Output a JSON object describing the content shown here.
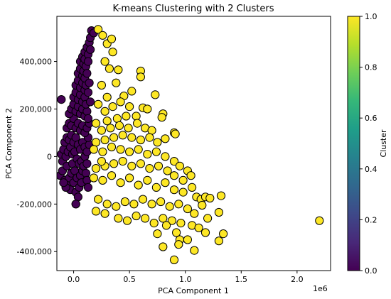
{
  "chart_data": {
    "type": "scatter",
    "title": "K-means Clustering with 2 Clusters",
    "xlabel": "PCA Component 1",
    "ylabel": "PCA Component 2",
    "x_offset_text": "1e6",
    "x_scale": 1000000,
    "xlim": [
      -0.15,
      2.3
    ],
    "ylim": [
      -480000,
      590000
    ],
    "x_ticks": [
      0.0,
      0.5,
      1.0,
      1.5,
      2.0
    ],
    "x_tick_labels": [
      "0.0",
      "0.5",
      "1.0",
      "1.5",
      "2.0"
    ],
    "y_ticks": [
      -400000,
      -200000,
      0,
      200000,
      400000
    ],
    "y_tick_labels": [
      "-400,000",
      "-200,000",
      "0",
      "200,000",
      "400,000"
    ],
    "grid": false,
    "legend": "none",
    "marker_edge_color": "#000000",
    "colorbar": {
      "label": "Cluster",
      "colormap": "viridis",
      "range": [
        0.0,
        1.0
      ],
      "ticks": [
        0.0,
        0.2,
        0.4,
        0.6,
        0.8,
        1.0
      ],
      "tick_labels": [
        "0.0",
        "0.2",
        "0.4",
        "0.6",
        "0.8",
        "1.0"
      ],
      "stops": [
        "#440154",
        "#482878",
        "#3e4989",
        "#31688e",
        "#26828e",
        "#1f9e89",
        "#35b779",
        "#6ece58",
        "#b5de2b",
        "#fde725"
      ]
    },
    "series": [
      {
        "cluster": 0,
        "color": "#440154",
        "points": [
          [
            -0.12,
            -80000
          ],
          [
            -0.1,
            -60000
          ],
          [
            -0.08,
            -100000
          ],
          [
            -0.1,
            -20000
          ],
          [
            -0.06,
            -40000
          ],
          [
            -0.05,
            -120000
          ],
          [
            -0.03,
            -140000
          ],
          [
            -0.04,
            -90000
          ],
          [
            -0.02,
            -70000
          ],
          [
            0.0,
            -110000
          ],
          [
            0.02,
            -150000
          ],
          [
            -0.01,
            -30000
          ],
          [
            0.01,
            -60000
          ],
          [
            0.03,
            -90000
          ],
          [
            0.05,
            -130000
          ],
          [
            0.04,
            -170000
          ],
          [
            0.06,
            -80000
          ],
          [
            0.02,
            -200000
          ],
          [
            0.07,
            -110000
          ],
          [
            0.08,
            -60000
          ],
          [
            -0.11,
            10000
          ],
          [
            -0.09,
            30000
          ],
          [
            -0.07,
            0
          ],
          [
            -0.05,
            20000
          ],
          [
            -0.03,
            40000
          ],
          [
            -0.01,
            10000
          ],
          [
            0.01,
            20000
          ],
          [
            0.03,
            -10000
          ],
          [
            0.05,
            -30000
          ],
          [
            0.07,
            -20000
          ],
          [
            0.09,
            -40000
          ],
          [
            0.1,
            0
          ],
          [
            0.11,
            -70000
          ],
          [
            0.12,
            -100000
          ],
          [
            0.13,
            -130000
          ],
          [
            0.12,
            -30000
          ],
          [
            -0.08,
            60000
          ],
          [
            -0.06,
            80000
          ],
          [
            -0.04,
            70000
          ],
          [
            -0.02,
            90000
          ],
          [
            0.0,
            60000
          ],
          [
            0.02,
            80000
          ],
          [
            0.04,
            50000
          ],
          [
            0.06,
            30000
          ],
          [
            0.08,
            60000
          ],
          [
            0.1,
            40000
          ],
          [
            0.12,
            20000
          ],
          [
            0.14,
            50000
          ],
          [
            0.13,
            80000
          ],
          [
            -0.06,
            120000
          ],
          [
            -0.04,
            140000
          ],
          [
            -0.02,
            130000
          ],
          [
            0.0,
            160000
          ],
          [
            0.02,
            120000
          ],
          [
            0.04,
            140000
          ],
          [
            0.06,
            110000
          ],
          [
            0.08,
            130000
          ],
          [
            0.1,
            100000
          ],
          [
            0.12,
            120000
          ],
          [
            0.14,
            140000
          ],
          [
            -0.11,
            240000
          ],
          [
            -0.04,
            180000
          ],
          [
            -0.02,
            200000
          ],
          [
            0.0,
            220000
          ],
          [
            0.02,
            190000
          ],
          [
            0.04,
            210000
          ],
          [
            0.06,
            180000
          ],
          [
            0.08,
            200000
          ],
          [
            0.1,
            170000
          ],
          [
            0.12,
            190000
          ],
          [
            0.13,
            160000
          ],
          [
            0.0,
            250000
          ],
          [
            0.02,
            270000
          ],
          [
            0.04,
            240000
          ],
          [
            0.06,
            260000
          ],
          [
            0.08,
            230000
          ],
          [
            0.1,
            250000
          ],
          [
            0.11,
            220000
          ],
          [
            0.02,
            300000
          ],
          [
            0.04,
            320000
          ],
          [
            0.06,
            290000
          ],
          [
            0.08,
            310000
          ],
          [
            0.1,
            280000
          ],
          [
            0.11,
            300000
          ],
          [
            0.04,
            350000
          ],
          [
            0.06,
            370000
          ],
          [
            0.08,
            340000
          ],
          [
            0.09,
            360000
          ],
          [
            0.1,
            330000
          ],
          [
            0.06,
            400000
          ],
          [
            0.08,
            420000
          ],
          [
            0.09,
            390000
          ],
          [
            0.1,
            410000
          ],
          [
            0.11,
            380000
          ],
          [
            0.1,
            440000
          ],
          [
            0.12,
            460000
          ],
          [
            0.13,
            430000
          ],
          [
            0.14,
            480000
          ],
          [
            0.15,
            500000
          ],
          [
            0.16,
            530000
          ],
          [
            0.18,
            520000
          ],
          [
            0.15,
            450000
          ],
          [
            0.13,
            400000
          ],
          [
            0.12,
            350000
          ],
          [
            0.14,
            310000
          ],
          [
            0.13,
            270000
          ],
          [
            0.15,
            230000
          ],
          [
            0.02,
            -200000
          ],
          [
            -0.07,
            -130000
          ],
          [
            -0.09,
            -110000
          ]
        ]
      },
      {
        "cluster": 1,
        "color": "#fde725",
        "points": [
          [
            2.2,
            -270000
          ],
          [
            0.22,
            535000
          ],
          [
            0.26,
            510000
          ],
          [
            0.3,
            475000
          ],
          [
            0.34,
            495000
          ],
          [
            0.35,
            440000
          ],
          [
            0.28,
            400000
          ],
          [
            0.32,
            370000
          ],
          [
            0.4,
            365000
          ],
          [
            0.6,
            360000
          ],
          [
            0.6,
            335000
          ],
          [
            0.73,
            260000
          ],
          [
            0.52,
            275000
          ],
          [
            0.45,
            255000
          ],
          [
            0.38,
            310000
          ],
          [
            0.25,
            300000
          ],
          [
            0.3,
            250000
          ],
          [
            0.22,
            220000
          ],
          [
            0.28,
            190000
          ],
          [
            0.35,
            210000
          ],
          [
            0.42,
            230000
          ],
          [
            0.5,
            210000
          ],
          [
            0.62,
            205000
          ],
          [
            0.66,
            200000
          ],
          [
            0.56,
            170000
          ],
          [
            0.47,
            170000
          ],
          [
            0.39,
            160000
          ],
          [
            0.3,
            150000
          ],
          [
            0.2,
            140000
          ],
          [
            0.25,
            110000
          ],
          [
            0.33,
            120000
          ],
          [
            0.41,
            130000
          ],
          [
            0.49,
            120000
          ],
          [
            0.57,
            140000
          ],
          [
            0.64,
            120000
          ],
          [
            0.7,
            110000
          ],
          [
            0.8,
            180000
          ],
          [
            0.79,
            165000
          ],
          [
            0.9,
            100000
          ],
          [
            0.91,
            95000
          ],
          [
            0.82,
            75000
          ],
          [
            0.75,
            60000
          ],
          [
            0.68,
            80000
          ],
          [
            0.6,
            70000
          ],
          [
            0.52,
            80000
          ],
          [
            0.44,
            90000
          ],
          [
            0.36,
            80000
          ],
          [
            0.28,
            70000
          ],
          [
            0.2,
            60000
          ],
          [
            0.18,
            30000
          ],
          [
            0.26,
            20000
          ],
          [
            0.34,
            40000
          ],
          [
            0.42,
            30000
          ],
          [
            0.5,
            20000
          ],
          [
            0.58,
            30000
          ],
          [
            0.66,
            10000
          ],
          [
            0.74,
            20000
          ],
          [
            0.82,
            0
          ],
          [
            0.9,
            -20000
          ],
          [
            0.95,
            -40000
          ],
          [
            1.02,
            -60000
          ],
          [
            1.05,
            -80000
          ],
          [
            0.98,
            -100000
          ],
          [
            0.9,
            -80000
          ],
          [
            0.84,
            -60000
          ],
          [
            0.76,
            -40000
          ],
          [
            0.68,
            -50000
          ],
          [
            0.6,
            -30000
          ],
          [
            0.52,
            -40000
          ],
          [
            0.44,
            -20000
          ],
          [
            0.36,
            -30000
          ],
          [
            0.28,
            -40000
          ],
          [
            0.2,
            -50000
          ],
          [
            0.18,
            -90000
          ],
          [
            0.26,
            -100000
          ],
          [
            0.34,
            -80000
          ],
          [
            0.42,
            -110000
          ],
          [
            0.5,
            -90000
          ],
          [
            0.58,
            -120000
          ],
          [
            0.66,
            -100000
          ],
          [
            0.74,
            -130000
          ],
          [
            0.82,
            -110000
          ],
          [
            0.9,
            -140000
          ],
          [
            0.98,
            -150000
          ],
          [
            1.06,
            -130000
          ],
          [
            1.1,
            -170000
          ],
          [
            1.14,
            -180000
          ],
          [
            1.18,
            -170000
          ],
          [
            1.22,
            -175000
          ],
          [
            1.32,
            -165000
          ],
          [
            1.3,
            -235000
          ],
          [
            1.15,
            -205000
          ],
          [
            1.08,
            -240000
          ],
          [
            1.02,
            -220000
          ],
          [
            0.94,
            -200000
          ],
          [
            0.86,
            -210000
          ],
          [
            0.78,
            -190000
          ],
          [
            0.7,
            -200000
          ],
          [
            0.62,
            -180000
          ],
          [
            0.54,
            -200000
          ],
          [
            0.46,
            -190000
          ],
          [
            0.38,
            -210000
          ],
          [
            0.3,
            -200000
          ],
          [
            0.22,
            -180000
          ],
          [
            0.2,
            -230000
          ],
          [
            0.28,
            -240000
          ],
          [
            0.4,
            -260000
          ],
          [
            0.48,
            -270000
          ],
          [
            0.56,
            -250000
          ],
          [
            0.64,
            -260000
          ],
          [
            0.72,
            -280000
          ],
          [
            0.8,
            -260000
          ],
          [
            0.88,
            -270000
          ],
          [
            0.96,
            -280000
          ],
          [
            1.06,
            -290000
          ],
          [
            1.12,
            -300000
          ],
          [
            1.18,
            -320000
          ],
          [
            1.2,
            -260000
          ],
          [
            1.34,
            -325000
          ],
          [
            1.3,
            -355000
          ],
          [
            1.02,
            -350000
          ],
          [
            1.08,
            -395000
          ],
          [
            0.95,
            -350000
          ],
          [
            0.94,
            -370000
          ],
          [
            0.92,
            -320000
          ],
          [
            0.9,
            -435000
          ],
          [
            0.8,
            -380000
          ],
          [
            0.75,
            -325000
          ],
          [
            0.83,
            -290000
          ],
          [
            0.25,
            -20000
          ]
        ]
      }
    ]
  }
}
